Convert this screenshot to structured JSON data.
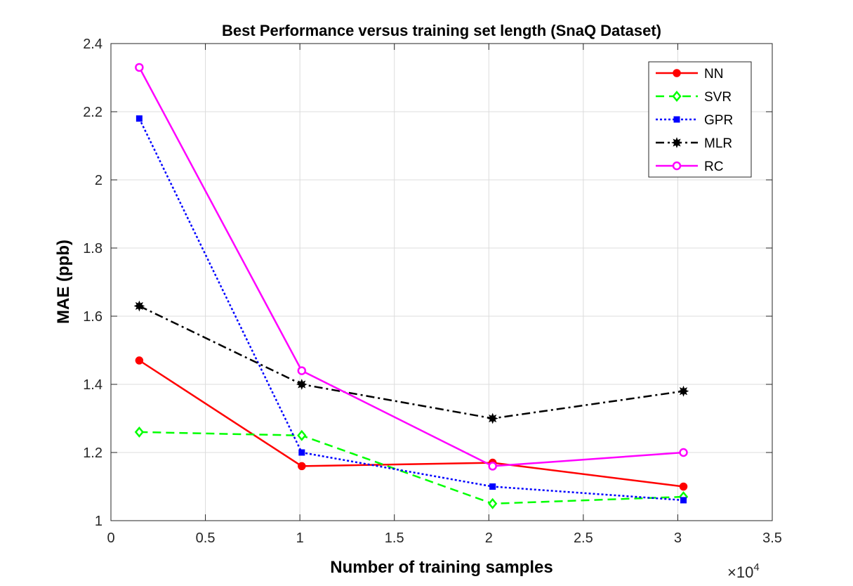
{
  "chart_data": {
    "type": "line",
    "title": "Best Performance versus training set length (SnaQ Dataset)",
    "xlabel": "Number of training samples",
    "ylabel": "MAE (ppb)",
    "x_exponent_label": "×10",
    "x_exponent_power": "4",
    "xlim": [
      0,
      3.5
    ],
    "ylim": [
      1,
      2.4
    ],
    "x_scale_factor": 10000,
    "xticks": [
      0,
      0.5,
      1,
      1.5,
      2,
      2.5,
      3,
      3.5
    ],
    "xtick_labels": [
      "0",
      "0.5",
      "1",
      "1.5",
      "2",
      "2.5",
      "3",
      "3.5"
    ],
    "yticks": [
      1,
      1.2,
      1.4,
      1.6,
      1.8,
      2,
      2.2,
      2.4
    ],
    "ytick_labels": [
      "1",
      "1.2",
      "1.4",
      "1.6",
      "1.8",
      "2",
      "2.2",
      "2.4"
    ],
    "grid": true,
    "legend_position": "top-right",
    "x": [
      0.15,
      1.01,
      2.02,
      3.03
    ],
    "series": [
      {
        "name": "NN",
        "color": "#ff0000",
        "dash": "solid",
        "marker": "filled-circle",
        "values": [
          1.47,
          1.16,
          1.17,
          1.1
        ]
      },
      {
        "name": "SVR",
        "color": "#00ff00",
        "dash": "dashed",
        "marker": "open-diamond",
        "values": [
          1.26,
          1.25,
          1.05,
          1.07
        ]
      },
      {
        "name": "GPR",
        "color": "#0000ff",
        "dash": "dotted",
        "marker": "filled-square",
        "values": [
          2.18,
          1.2,
          1.1,
          1.06
        ]
      },
      {
        "name": "MLR",
        "color": "#000000",
        "dash": "dashdot",
        "marker": "filled-star",
        "values": [
          1.63,
          1.4,
          1.3,
          1.38
        ]
      },
      {
        "name": "RC",
        "color": "#ff00ff",
        "dash": "solid",
        "marker": "open-circle",
        "values": [
          2.33,
          1.44,
          1.16,
          1.2
        ]
      }
    ]
  }
}
